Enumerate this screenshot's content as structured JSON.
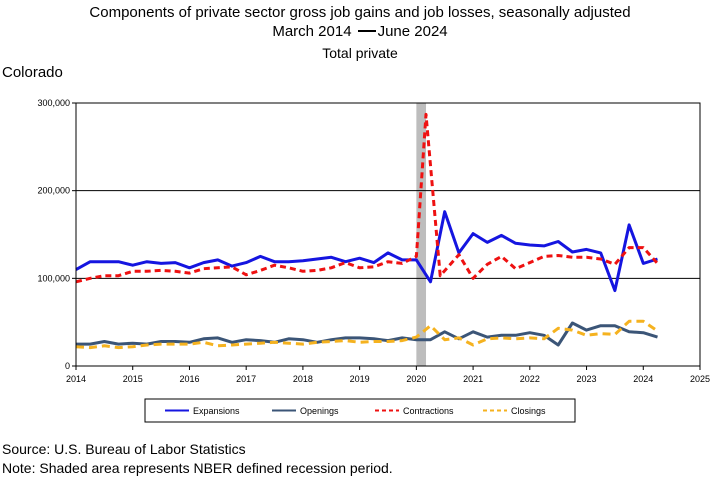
{
  "title": {
    "line1": "Components of private sector gross job gains and job losses, seasonally adjusted",
    "line2_start": "March 2014",
    "line2_end": "June 2024",
    "line3": "Total private"
  },
  "state_label": "Colorado",
  "footer": {
    "source": "Source: U.S. Bureau of Labor Statistics",
    "note": "Note: Shaded area represents NBER defined recession period."
  },
  "colors": {
    "expansions": "#1515e0",
    "openings": "#3b5577",
    "contractions": "#ee1111",
    "closings": "#f5b21f",
    "recession": "#bdbdbd"
  },
  "chart_data": {
    "type": "line",
    "xlim": [
      2014,
      2025
    ],
    "ylim": [
      0,
      300000
    ],
    "x_ticks": [
      2014,
      2015,
      2016,
      2017,
      2018,
      2019,
      2020,
      2021,
      2022,
      2023,
      2024,
      2025
    ],
    "y_ticks": [
      0,
      100000,
      200000,
      300000
    ],
    "y_tick_labels": [
      "0",
      "100,000",
      "200,000",
      "300,000"
    ],
    "gridlines_y": [
      100000,
      200000
    ],
    "recession_shade": [
      2020.0,
      2020.17
    ],
    "legend_placement": "bottom",
    "series": [
      {
        "name": "Expansions",
        "color": "#1515e0",
        "dash": "solid",
        "values": [
          [
            2014.0,
            110000
          ],
          [
            2014.25,
            119000
          ],
          [
            2014.5,
            119000
          ],
          [
            2014.75,
            119000
          ],
          [
            2015.0,
            115000
          ],
          [
            2015.25,
            119000
          ],
          [
            2015.5,
            117000
          ],
          [
            2015.75,
            118000
          ],
          [
            2016.0,
            112000
          ],
          [
            2016.25,
            118000
          ],
          [
            2016.5,
            121000
          ],
          [
            2016.75,
            114000
          ],
          [
            2017.0,
            118000
          ],
          [
            2017.25,
            125000
          ],
          [
            2017.5,
            119000
          ],
          [
            2017.75,
            119000
          ],
          [
            2018.0,
            120000
          ],
          [
            2018.25,
            122000
          ],
          [
            2018.5,
            124000
          ],
          [
            2018.75,
            119000
          ],
          [
            2019.0,
            123000
          ],
          [
            2019.25,
            118000
          ],
          [
            2019.5,
            129000
          ],
          [
            2019.75,
            121000
          ],
          [
            2020.0,
            121000
          ],
          [
            2020.25,
            96000
          ],
          [
            2020.5,
            176000
          ],
          [
            2020.75,
            129000
          ],
          [
            2021.0,
            151000
          ],
          [
            2021.25,
            141000
          ],
          [
            2021.5,
            149000
          ],
          [
            2021.75,
            140000
          ],
          [
            2022.0,
            138000
          ],
          [
            2022.25,
            137000
          ],
          [
            2022.5,
            142000
          ],
          [
            2022.75,
            130000
          ],
          [
            2023.0,
            133000
          ],
          [
            2023.25,
            129000
          ],
          [
            2023.5,
            86000
          ],
          [
            2023.75,
            161000
          ],
          [
            2024.0,
            117000
          ],
          [
            2024.25,
            122000
          ]
        ]
      },
      {
        "name": "Openings",
        "color": "#3b5577",
        "dash": "solid",
        "values": [
          [
            2014.0,
            25000
          ],
          [
            2014.25,
            25000
          ],
          [
            2014.5,
            28000
          ],
          [
            2014.75,
            25000
          ],
          [
            2015.0,
            26000
          ],
          [
            2015.25,
            25000
          ],
          [
            2015.5,
            28000
          ],
          [
            2015.75,
            28000
          ],
          [
            2016.0,
            27000
          ],
          [
            2016.25,
            31000
          ],
          [
            2016.5,
            32000
          ],
          [
            2016.75,
            27000
          ],
          [
            2017.0,
            30000
          ],
          [
            2017.25,
            29000
          ],
          [
            2017.5,
            27000
          ],
          [
            2017.75,
            31000
          ],
          [
            2018.0,
            30000
          ],
          [
            2018.25,
            27000
          ],
          [
            2018.5,
            30000
          ],
          [
            2018.75,
            32000
          ],
          [
            2019.0,
            32000
          ],
          [
            2019.25,
            31000
          ],
          [
            2019.5,
            29000
          ],
          [
            2019.75,
            32000
          ],
          [
            2020.0,
            30000
          ],
          [
            2020.25,
            30000
          ],
          [
            2020.5,
            39000
          ],
          [
            2020.75,
            31000
          ],
          [
            2021.0,
            39000
          ],
          [
            2021.25,
            33000
          ],
          [
            2021.5,
            35000
          ],
          [
            2021.75,
            35000
          ],
          [
            2022.0,
            38000
          ],
          [
            2022.25,
            35000
          ],
          [
            2022.5,
            24000
          ],
          [
            2022.75,
            49000
          ],
          [
            2023.0,
            41000
          ],
          [
            2023.25,
            46000
          ],
          [
            2023.5,
            46000
          ],
          [
            2023.75,
            39000
          ],
          [
            2024.0,
            38000
          ],
          [
            2024.25,
            33000
          ]
        ]
      },
      {
        "name": "Contractions",
        "color": "#ee1111",
        "dash": "6,4",
        "values": [
          [
            2014.0,
            96000
          ],
          [
            2014.25,
            100000
          ],
          [
            2014.5,
            103000
          ],
          [
            2014.75,
            103000
          ],
          [
            2015.0,
            108000
          ],
          [
            2015.25,
            108000
          ],
          [
            2015.5,
            109000
          ],
          [
            2015.75,
            108000
          ],
          [
            2016.0,
            106000
          ],
          [
            2016.25,
            111000
          ],
          [
            2016.5,
            112000
          ],
          [
            2016.75,
            113000
          ],
          [
            2017.0,
            104000
          ],
          [
            2017.25,
            109000
          ],
          [
            2017.5,
            115000
          ],
          [
            2017.75,
            112000
          ],
          [
            2018.0,
            108000
          ],
          [
            2018.25,
            109000
          ],
          [
            2018.5,
            112000
          ],
          [
            2018.75,
            118000
          ],
          [
            2019.0,
            112000
          ],
          [
            2019.25,
            113000
          ],
          [
            2019.5,
            119000
          ],
          [
            2019.75,
            117000
          ],
          [
            2020.0,
            125000
          ],
          [
            2020.17,
            287000
          ],
          [
            2020.42,
            103000
          ],
          [
            2020.75,
            127000
          ],
          [
            2021.0,
            100000
          ],
          [
            2021.25,
            116000
          ],
          [
            2021.5,
            125000
          ],
          [
            2021.75,
            111000
          ],
          [
            2022.0,
            118000
          ],
          [
            2022.25,
            125000
          ],
          [
            2022.5,
            126000
          ],
          [
            2022.75,
            124000
          ],
          [
            2023.0,
            124000
          ],
          [
            2023.25,
            122000
          ],
          [
            2023.5,
            116000
          ],
          [
            2023.75,
            135000
          ],
          [
            2024.0,
            135000
          ],
          [
            2024.25,
            117000
          ]
        ]
      },
      {
        "name": "Closings",
        "color": "#f5b21f",
        "dash": "8,5",
        "values": [
          [
            2014.0,
            22000
          ],
          [
            2014.25,
            21000
          ],
          [
            2014.5,
            23000
          ],
          [
            2014.75,
            21000
          ],
          [
            2015.0,
            22000
          ],
          [
            2015.25,
            24000
          ],
          [
            2015.5,
            25000
          ],
          [
            2015.75,
            25000
          ],
          [
            2016.0,
            25000
          ],
          [
            2016.25,
            27000
          ],
          [
            2016.5,
            23000
          ],
          [
            2016.75,
            24000
          ],
          [
            2017.0,
            25000
          ],
          [
            2017.25,
            26000
          ],
          [
            2017.5,
            27000
          ],
          [
            2017.75,
            26000
          ],
          [
            2018.0,
            25000
          ],
          [
            2018.25,
            27000
          ],
          [
            2018.5,
            28000
          ],
          [
            2018.75,
            29000
          ],
          [
            2019.0,
            27000
          ],
          [
            2019.25,
            28000
          ],
          [
            2019.5,
            28000
          ],
          [
            2019.75,
            29000
          ],
          [
            2020.0,
            33000
          ],
          [
            2020.25,
            46000
          ],
          [
            2020.5,
            30000
          ],
          [
            2020.75,
            32000
          ],
          [
            2021.0,
            24000
          ],
          [
            2021.25,
            31000
          ],
          [
            2021.5,
            32000
          ],
          [
            2021.75,
            31000
          ],
          [
            2022.0,
            32000
          ],
          [
            2022.25,
            31000
          ],
          [
            2022.5,
            43000
          ],
          [
            2022.75,
            41000
          ],
          [
            2023.0,
            35000
          ],
          [
            2023.25,
            37000
          ],
          [
            2023.5,
            36000
          ],
          [
            2023.75,
            51000
          ],
          [
            2024.0,
            51000
          ],
          [
            2024.25,
            40000
          ]
        ]
      }
    ]
  }
}
